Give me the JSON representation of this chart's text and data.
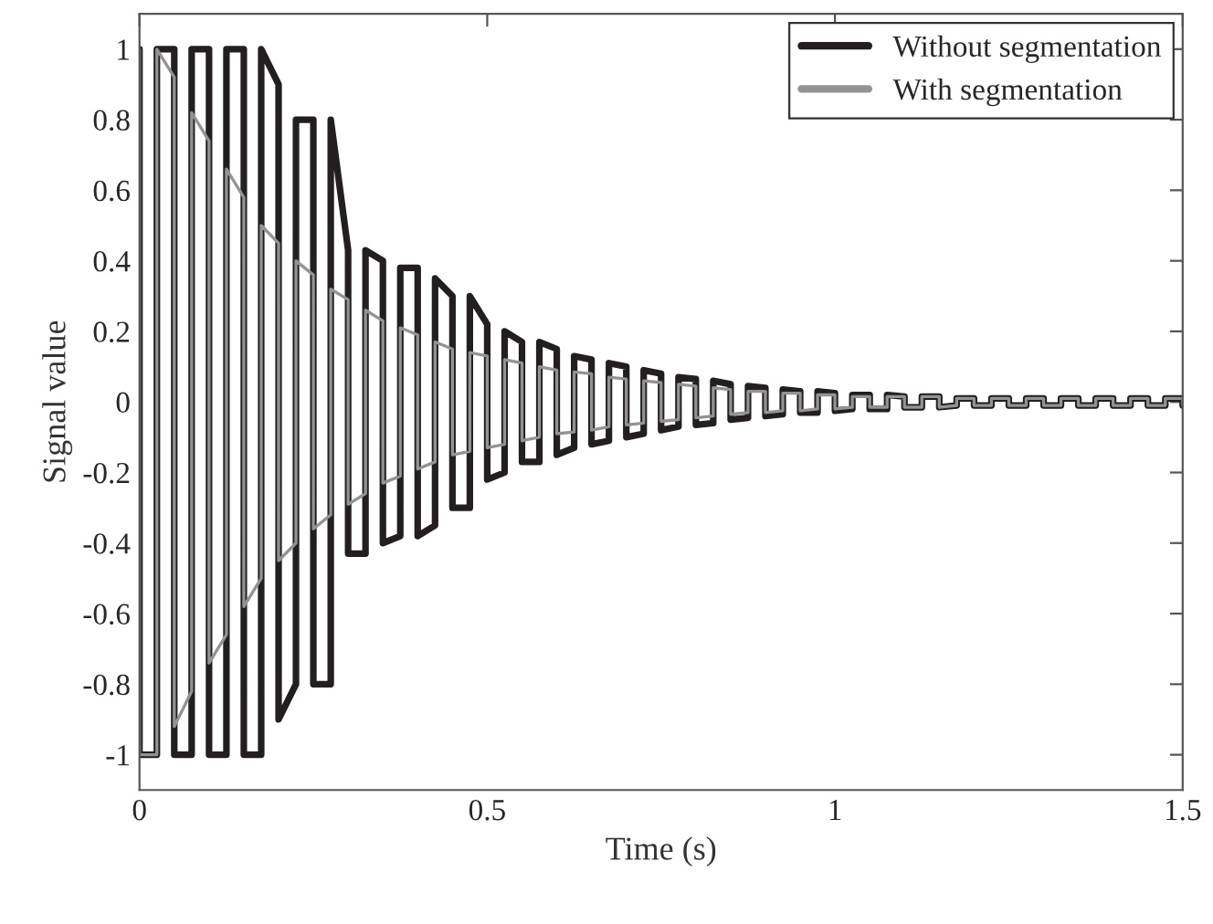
{
  "chart_data": {
    "type": "line",
    "xlabel": "Time (s)",
    "ylabel": "Signal value",
    "xlim": [
      0,
      1.5
    ],
    "xticks": [
      0,
      0.5,
      1,
      1.5
    ],
    "ylim": [
      -1.1,
      1.1
    ],
    "yticks": [
      -1,
      -0.8,
      -0.6,
      -0.4,
      -0.2,
      0,
      0.2,
      0.4,
      0.6,
      0.8,
      1
    ],
    "grid": false,
    "legend": "top right",
    "marker": "none",
    "line_style": "solid",
    "x": [
      0,
      0,
      0.025,
      0.025,
      0.05,
      0.05,
      0.075,
      0.075,
      0.1,
      0.1,
      0.125,
      0.125,
      0.15,
      0.15,
      0.175,
      0.175,
      0.2,
      0.2,
      0.225,
      0.225,
      0.25,
      0.25,
      0.275,
      0.275,
      0.3,
      0.3,
      0.325,
      0.325,
      0.35,
      0.35,
      0.375,
      0.375,
      0.4,
      0.4,
      0.425,
      0.425,
      0.45,
      0.45,
      0.475,
      0.475,
      0.5,
      0.5,
      0.525,
      0.525,
      0.55,
      0.55,
      0.575,
      0.575,
      0.6,
      0.6,
      0.625,
      0.625,
      0.65,
      0.65,
      0.675,
      0.675,
      0.7,
      0.7,
      0.725,
      0.725,
      0.75,
      0.75,
      0.775,
      0.775,
      0.8,
      0.8,
      0.825,
      0.825,
      0.85,
      0.85,
      0.875,
      0.875,
      0.9,
      0.9,
      0.925,
      0.925,
      0.95,
      0.95,
      0.975,
      0.975,
      1,
      1,
      1.025,
      1.025,
      1.05,
      1.05,
      1.075,
      1.075,
      1.1,
      1.1,
      1.125,
      1.125,
      1.15,
      1.15,
      1.175,
      1.175,
      1.2,
      1.2,
      1.225,
      1.225,
      1.25,
      1.25,
      1.275,
      1.275,
      1.3,
      1.3,
      1.325,
      1.325,
      1.35,
      1.35,
      1.375,
      1.375,
      1.4,
      1.4,
      1.425,
      1.425,
      1.45,
      1.45,
      1.475,
      1.475,
      1.5,
      1.5
    ],
    "series": [
      {
        "name": "Without segmentation",
        "color": "#231f20",
        "values": [
          1,
          -1,
          -1,
          1,
          1,
          -1,
          -1,
          1,
          1,
          -1,
          -1,
          1,
          1,
          -1,
          -1,
          1,
          0.9,
          -0.9,
          -0.8,
          0.8,
          0.8,
          -0.8,
          -0.8,
          0.8,
          0.43,
          -0.43,
          -0.43,
          0.43,
          0.4,
          -0.4,
          -0.38,
          0.38,
          0.38,
          -0.38,
          -0.35,
          0.35,
          0.3,
          -0.3,
          -0.3,
          0.3,
          0.22,
          -0.22,
          -0.2,
          0.2,
          0.17,
          -0.17,
          -0.17,
          0.17,
          0.15,
          -0.15,
          -0.13,
          0.13,
          0.12,
          -0.12,
          -0.11,
          0.11,
          0.1,
          -0.1,
          -0.09,
          0.09,
          0.08,
          -0.08,
          -0.07,
          0.07,
          0.065,
          -0.065,
          -0.06,
          0.06,
          0.05,
          -0.05,
          -0.045,
          0.045,
          0.04,
          -0.04,
          -0.035,
          0.035,
          0.03,
          -0.03,
          -0.03,
          0.03,
          0.025,
          -0.025,
          -0.02,
          0.02,
          0.02,
          -0.02,
          -0.02,
          0.02,
          0.015,
          -0.015,
          -0.015,
          0.015,
          0.015,
          -0.015,
          -0.01,
          0.01,
          0.01,
          -0.01,
          -0.01,
          0.01,
          0.01,
          -0.01,
          -0.01,
          0.01,
          0.01,
          -0.01,
          -0.01,
          0.01,
          0.01,
          -0.01,
          -0.01,
          0.01,
          0.01,
          -0.01,
          -0.01,
          0.01,
          0.01,
          -0.01,
          -0.01,
          0.01,
          0.01,
          -0.01
        ]
      },
      {
        "name": "With segmentation",
        "color": "#939393",
        "values": [
          1,
          -1,
          -1,
          1,
          0.92,
          -0.92,
          -0.82,
          0.82,
          0.74,
          -0.74,
          -0.66,
          0.66,
          0.58,
          -0.58,
          -0.5,
          0.5,
          0.45,
          -0.45,
          -0.4,
          0.4,
          0.36,
          -0.36,
          -0.32,
          0.32,
          0.29,
          -0.29,
          -0.26,
          0.26,
          0.23,
          -0.23,
          -0.21,
          0.21,
          0.19,
          -0.19,
          -0.17,
          0.17,
          0.15,
          -0.15,
          -0.14,
          0.14,
          0.13,
          -0.13,
          -0.12,
          0.12,
          0.11,
          -0.11,
          -0.1,
          0.1,
          0.09,
          -0.09,
          -0.085,
          0.085,
          0.08,
          -0.08,
          -0.07,
          0.07,
          0.065,
          -0.065,
          -0.06,
          0.06,
          0.055,
          -0.055,
          -0.05,
          0.05,
          0.045,
          -0.045,
          -0.04,
          0.04,
          0.035,
          -0.035,
          -0.03,
          0.03,
          0.03,
          -0.03,
          -0.025,
          0.025,
          0.025,
          -0.025,
          -0.02,
          0.02,
          0.02,
          -0.02,
          -0.015,
          0.015,
          0.015,
          -0.015,
          -0.015,
          0.015,
          0.015,
          -0.015,
          -0.015,
          0.015,
          0.015,
          -0.015,
          -0.01,
          0.01,
          0.01,
          -0.01,
          -0.01,
          0.01,
          0.01,
          -0.01,
          -0.01,
          0.01,
          0.01,
          -0.01,
          -0.01,
          0.01,
          0.01,
          -0.01,
          -0.01,
          0.01,
          0.01,
          -0.01,
          -0.01,
          0.01,
          0.01,
          -0.01,
          -0.01,
          0.01,
          0.01,
          -0.01
        ]
      }
    ]
  }
}
